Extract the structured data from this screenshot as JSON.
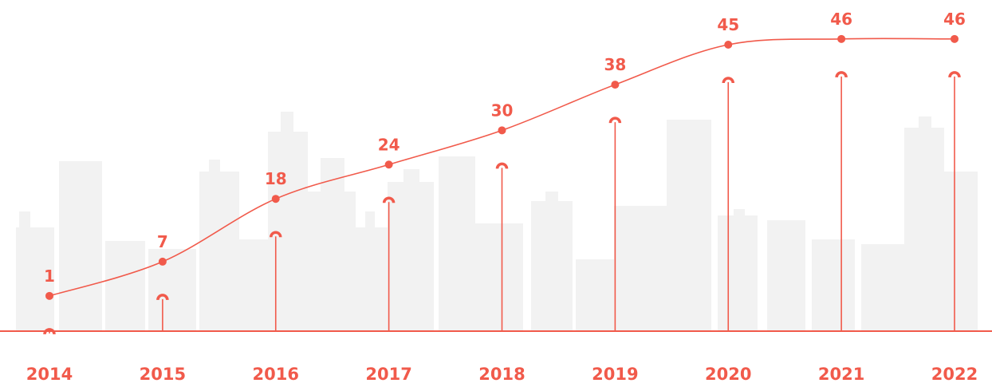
{
  "chart_data": {
    "type": "line",
    "categories": [
      "2014",
      "2015",
      "2016",
      "2017",
      "2018",
      "2019",
      "2020",
      "2021",
      "2022"
    ],
    "values": [
      1,
      7,
      18,
      24,
      30,
      38,
      45,
      46,
      46
    ],
    "color": "#f15a4b"
  }
}
